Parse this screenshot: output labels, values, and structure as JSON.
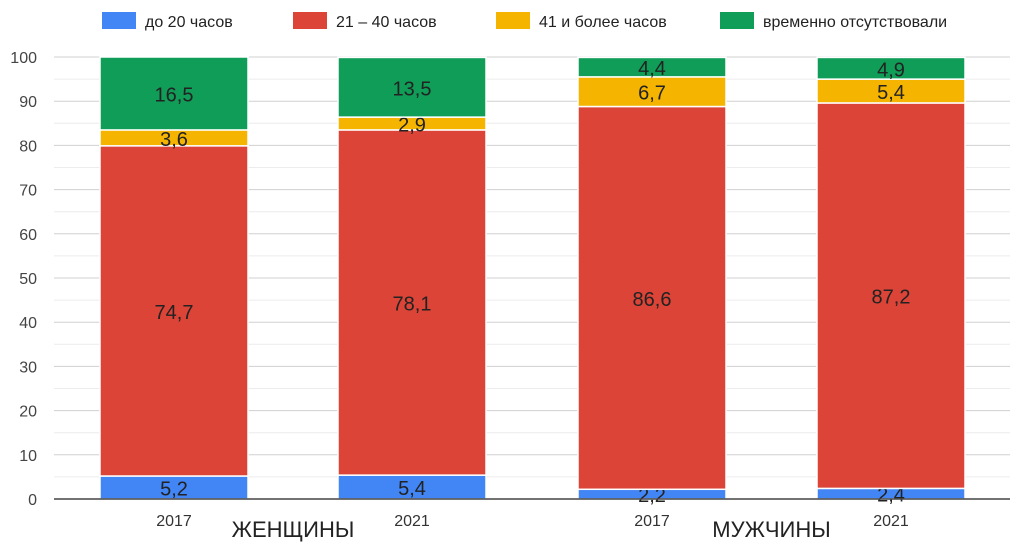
{
  "chart_data": {
    "type": "bar",
    "stacked": true,
    "categories": [
      "2017",
      "2021",
      "2017",
      "2021"
    ],
    "groups": [
      {
        "label": "ЖЕНЩИНЫ",
        "categories": [
          0,
          1
        ]
      },
      {
        "label": "МУЖЧИНЫ",
        "categories": [
          2,
          3
        ]
      }
    ],
    "series": [
      {
        "name": "до 20 часов",
        "color": "#4285f4",
        "values": [
          5.2,
          5.4,
          2.2,
          2.4
        ],
        "labels": [
          "5,2",
          "5,4",
          "2,2",
          "2,4"
        ]
      },
      {
        "name": "21 – 40 часов",
        "color": "#db4437",
        "values": [
          74.7,
          78.1,
          86.6,
          87.2
        ],
        "labels": [
          "74,7",
          "78,1",
          "86,6",
          "87,2"
        ]
      },
      {
        "name": "41 и более часов",
        "color": "#f4b400",
        "values": [
          3.6,
          2.9,
          6.7,
          5.4
        ],
        "labels": [
          "3,6",
          "2,9",
          "6,7",
          "5,4"
        ]
      },
      {
        "name": "временно отсутствовали",
        "color": "#0f9d58",
        "values": [
          16.5,
          13.5,
          4.4,
          4.9
        ],
        "labels": [
          "16,5",
          "13,5",
          "4,4",
          "4,9"
        ]
      }
    ],
    "yticks": [
      "0",
      "10",
      "20",
      "30",
      "40",
      "50",
      "60",
      "70",
      "80",
      "90",
      "100"
    ],
    "ylim": [
      0,
      100
    ],
    "grid": true,
    "legend": "top"
  }
}
